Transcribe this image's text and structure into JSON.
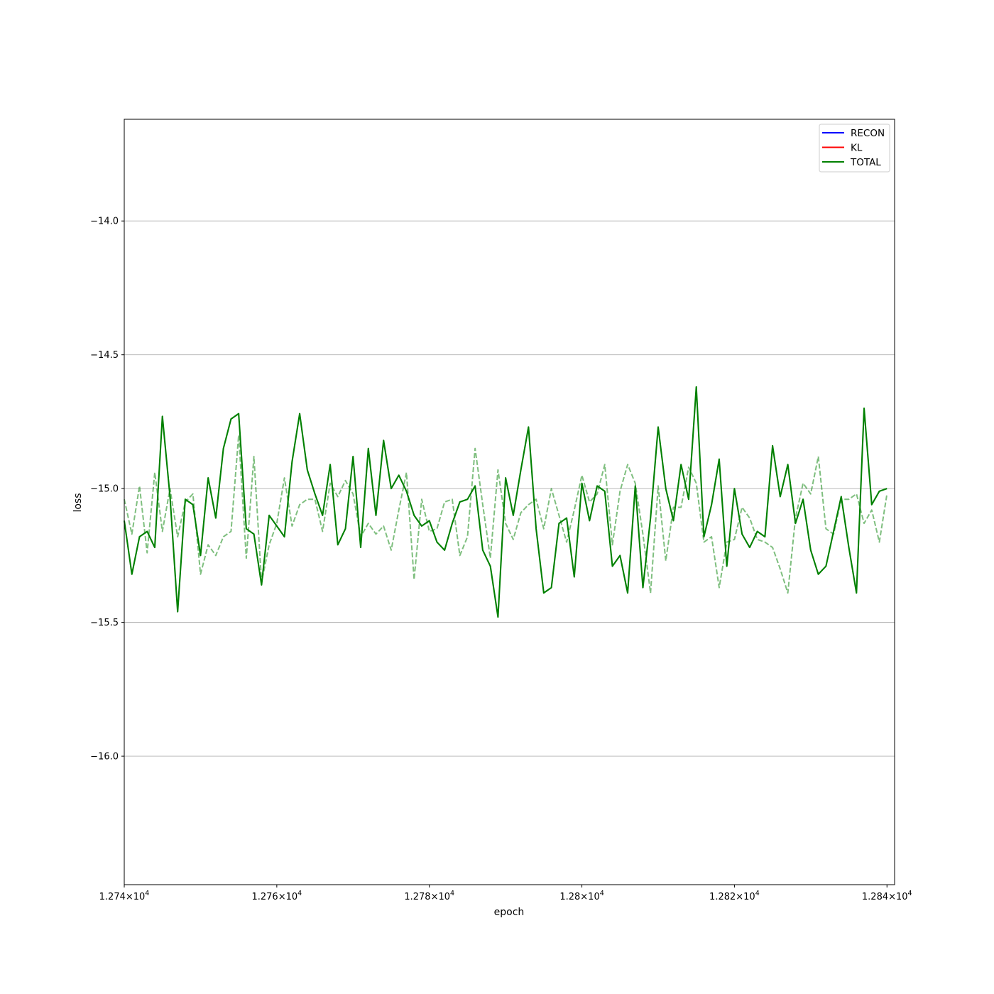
{
  "chart_data": {
    "type": "line",
    "xlabel": "epoch",
    "ylabel": "loss",
    "xlim": [
      12740,
      12841
    ],
    "ylim": [
      -16.48,
      -13.62
    ],
    "x_ticks": [
      {
        "value": 12740,
        "mant": "1.274",
        "exp": "4"
      },
      {
        "value": 12760,
        "mant": "1.276",
        "exp": "4"
      },
      {
        "value": 12780,
        "mant": "1.278",
        "exp": "4"
      },
      {
        "value": 12800,
        "mant": "1.28",
        "exp": "4"
      },
      {
        "value": 12820,
        "mant": "1.282",
        "exp": "4"
      },
      {
        "value": 12840,
        "mant": "1.284",
        "exp": "4"
      }
    ],
    "y_ticks": [
      {
        "value": -14.0,
        "label": "−14.0"
      },
      {
        "value": -14.5,
        "label": "−14.5"
      },
      {
        "value": -15.0,
        "label": "−15.0"
      },
      {
        "value": -15.5,
        "label": "−15.5"
      },
      {
        "value": -16.0,
        "label": "−16.0"
      }
    ],
    "grid": "y-major",
    "legend_position": "upper-right",
    "legend": [
      {
        "label": "RECON",
        "color": "#0000ff"
      },
      {
        "label": "KL",
        "color": "#ff0000"
      },
      {
        "label": "TOTAL",
        "color": "#008000"
      }
    ],
    "x_start": 12740,
    "x_step": 1,
    "series": [
      {
        "name": "TOTAL",
        "color": "#008000",
        "style": "solid",
        "values": [
          -15.12,
          -15.32,
          -15.18,
          -15.16,
          -15.22,
          -14.73,
          -15.03,
          -15.46,
          -15.04,
          -15.06,
          -15.25,
          -14.96,
          -15.11,
          -14.85,
          -14.74,
          -14.72,
          -15.15,
          -15.17,
          -15.36,
          -15.1,
          -15.14,
          -15.18,
          -14.9,
          -14.72,
          -14.93,
          -15.02,
          -15.1,
          -14.91,
          -15.21,
          -15.15,
          -14.88,
          -15.22,
          -14.85,
          -15.1,
          -14.82,
          -15.0,
          -14.95,
          -15.01,
          -15.1,
          -15.14,
          -15.12,
          -15.2,
          -15.23,
          -15.13,
          -15.05,
          -15.04,
          -14.99,
          -15.23,
          -15.29,
          -15.48,
          -14.96,
          -15.1,
          -14.93,
          -14.77,
          -15.15,
          -15.39,
          -15.37,
          -15.13,
          -15.11,
          -15.33,
          -14.98,
          -15.12,
          -14.99,
          -15.01,
          -15.29,
          -15.25,
          -15.39,
          -14.99,
          -15.37,
          -15.11,
          -14.77,
          -15.0,
          -15.12,
          -14.91,
          -15.04,
          -14.62,
          -15.18,
          -15.06,
          -14.89,
          -15.29,
          -15.0,
          -15.17,
          -15.22,
          -15.16,
          -15.18,
          -14.84,
          -15.03,
          -14.91,
          -15.13,
          -15.04,
          -15.23,
          -15.32,
          -15.29,
          -15.16,
          -15.03,
          -15.22,
          -15.39,
          -14.7,
          -15.06,
          -15.01,
          -15.0
        ]
      },
      {
        "name": "",
        "color": "#008000",
        "style": "dashed",
        "opacity": 0.5,
        "values": [
          -15.04,
          -15.17,
          -14.99,
          -15.24,
          -14.94,
          -15.16,
          -15.0,
          -15.18,
          -15.05,
          -15.02,
          -15.32,
          -15.21,
          -15.25,
          -15.18,
          -15.16,
          -14.8,
          -15.26,
          -14.88,
          -15.35,
          -15.21,
          -15.13,
          -14.96,
          -15.14,
          -15.06,
          -15.04,
          -15.04,
          -15.16,
          -14.98,
          -15.03,
          -14.97,
          -15.02,
          -15.18,
          -15.13,
          -15.17,
          -15.14,
          -15.23,
          -15.08,
          -14.94,
          -15.34,
          -15.04,
          -15.16,
          -15.15,
          -15.05,
          -15.04,
          -15.25,
          -15.18,
          -14.85,
          -15.06,
          -15.26,
          -14.93,
          -15.13,
          -15.19,
          -15.09,
          -15.06,
          -15.04,
          -15.15,
          -15.0,
          -15.1,
          -15.2,
          -15.08,
          -14.95,
          -15.05,
          -15.02,
          -14.91,
          -15.21,
          -15.01,
          -14.91,
          -14.98,
          -15.17,
          -15.39,
          -14.99,
          -15.27,
          -15.07,
          -15.07,
          -14.92,
          -14.98,
          -15.2,
          -15.18,
          -15.37,
          -15.2,
          -15.19,
          -15.07,
          -15.11,
          -15.19,
          -15.2,
          -15.22,
          -15.3,
          -15.39,
          -15.11,
          -14.98,
          -15.02,
          -14.88,
          -15.15,
          -15.17,
          -15.04,
          -15.04,
          -15.02,
          -15.13,
          -15.08,
          -15.2,
          -15.02
        ]
      }
    ]
  }
}
